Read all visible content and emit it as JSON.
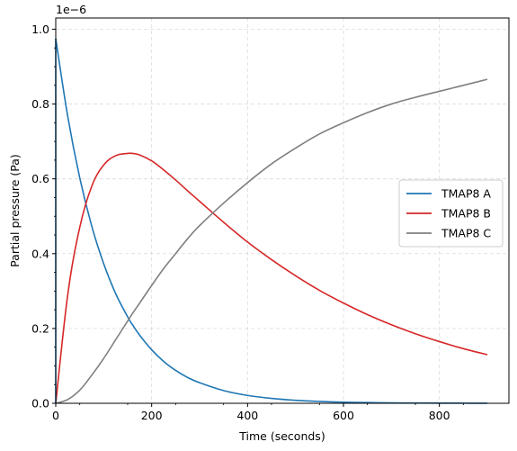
{
  "chart_data": {
    "type": "line",
    "title": "",
    "xlabel": "Time (seconds)",
    "ylabel": "Partial pressure (Pa)",
    "y_offset_text": "1e−6",
    "xlim": [
      0,
      945
    ],
    "ylim": [
      0,
      1.03
    ],
    "x_ticks": [
      0,
      200,
      400,
      600,
      800
    ],
    "x_tick_labels": [
      "0",
      "200",
      "400",
      "600",
      "800"
    ],
    "y_ticks": [
      0.0,
      0.2,
      0.4,
      0.6,
      0.8,
      1.0
    ],
    "y_tick_labels": [
      "0.0",
      "0.2",
      "0.4",
      "0.6",
      "0.8",
      "1.0"
    ],
    "grid": true,
    "legend_position": "center-right",
    "x": [
      0,
      25,
      50,
      75,
      100,
      125,
      150,
      160,
      175,
      200,
      225,
      250,
      275,
      300,
      350,
      400,
      450,
      500,
      550,
      600,
      650,
      700,
      750,
      800,
      850,
      900
    ],
    "series": [
      {
        "name": "TMAP8 A",
        "color": "#1f77b4",
        "values": [
          0.975,
          0.767,
          0.603,
          0.474,
          0.373,
          0.293,
          0.231,
          0.21,
          0.182,
          0.143,
          0.112,
          0.088,
          0.069,
          0.055,
          0.034,
          0.021,
          0.013,
          0.008,
          0.005,
          0.003,
          0.002,
          0.001,
          0.0008,
          0.0005,
          0.0003,
          0.0002
        ]
      },
      {
        "name": "TMAP8 B",
        "color": "#d62728",
        "values": [
          0.0,
          0.29,
          0.47,
          0.58,
          0.637,
          0.662,
          0.668,
          0.668,
          0.664,
          0.648,
          0.624,
          0.597,
          0.568,
          0.54,
          0.484,
          0.431,
          0.384,
          0.341,
          0.302,
          0.268,
          0.237,
          0.21,
          0.186,
          0.165,
          0.146,
          0.13
        ]
      },
      {
        "name": "TMAP8 C",
        "color": "#7f7f7f",
        "values": [
          0.0,
          0.01,
          0.035,
          0.075,
          0.12,
          0.17,
          0.22,
          0.24,
          0.268,
          0.315,
          0.36,
          0.4,
          0.44,
          0.475,
          0.535,
          0.59,
          0.64,
          0.682,
          0.72,
          0.75,
          0.777,
          0.8,
          0.818,
          0.834,
          0.85,
          0.866
        ]
      }
    ]
  }
}
